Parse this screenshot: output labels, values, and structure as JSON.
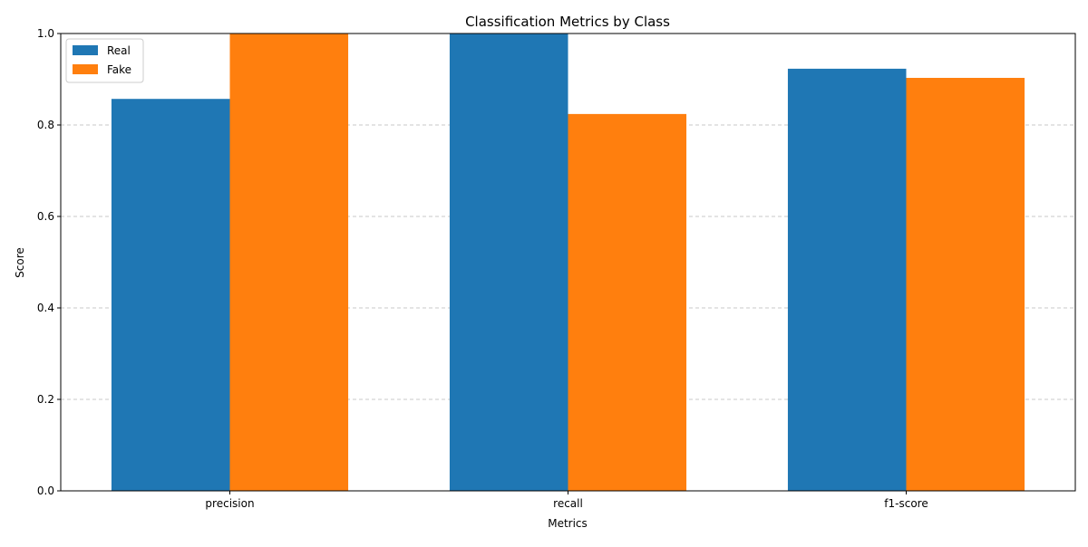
{
  "chart_data": {
    "type": "bar",
    "title": "Classification Metrics by Class",
    "xlabel": "Metrics",
    "ylabel": "Score",
    "categories": [
      "precision",
      "recall",
      "f1-score"
    ],
    "series": [
      {
        "name": "Real",
        "color": "#1f77b4",
        "values": [
          0.857,
          1.0,
          0.923
        ]
      },
      {
        "name": "Fake",
        "color": "#ff7f0e",
        "values": [
          1.0,
          0.824,
          0.903
        ]
      }
    ],
    "ylim": [
      0,
      1.0
    ],
    "yticks": [
      "0.0",
      "0.2",
      "0.4",
      "0.6",
      "0.8",
      "1.0"
    ],
    "grid": "y-dashed",
    "legend_position": "top-left"
  }
}
